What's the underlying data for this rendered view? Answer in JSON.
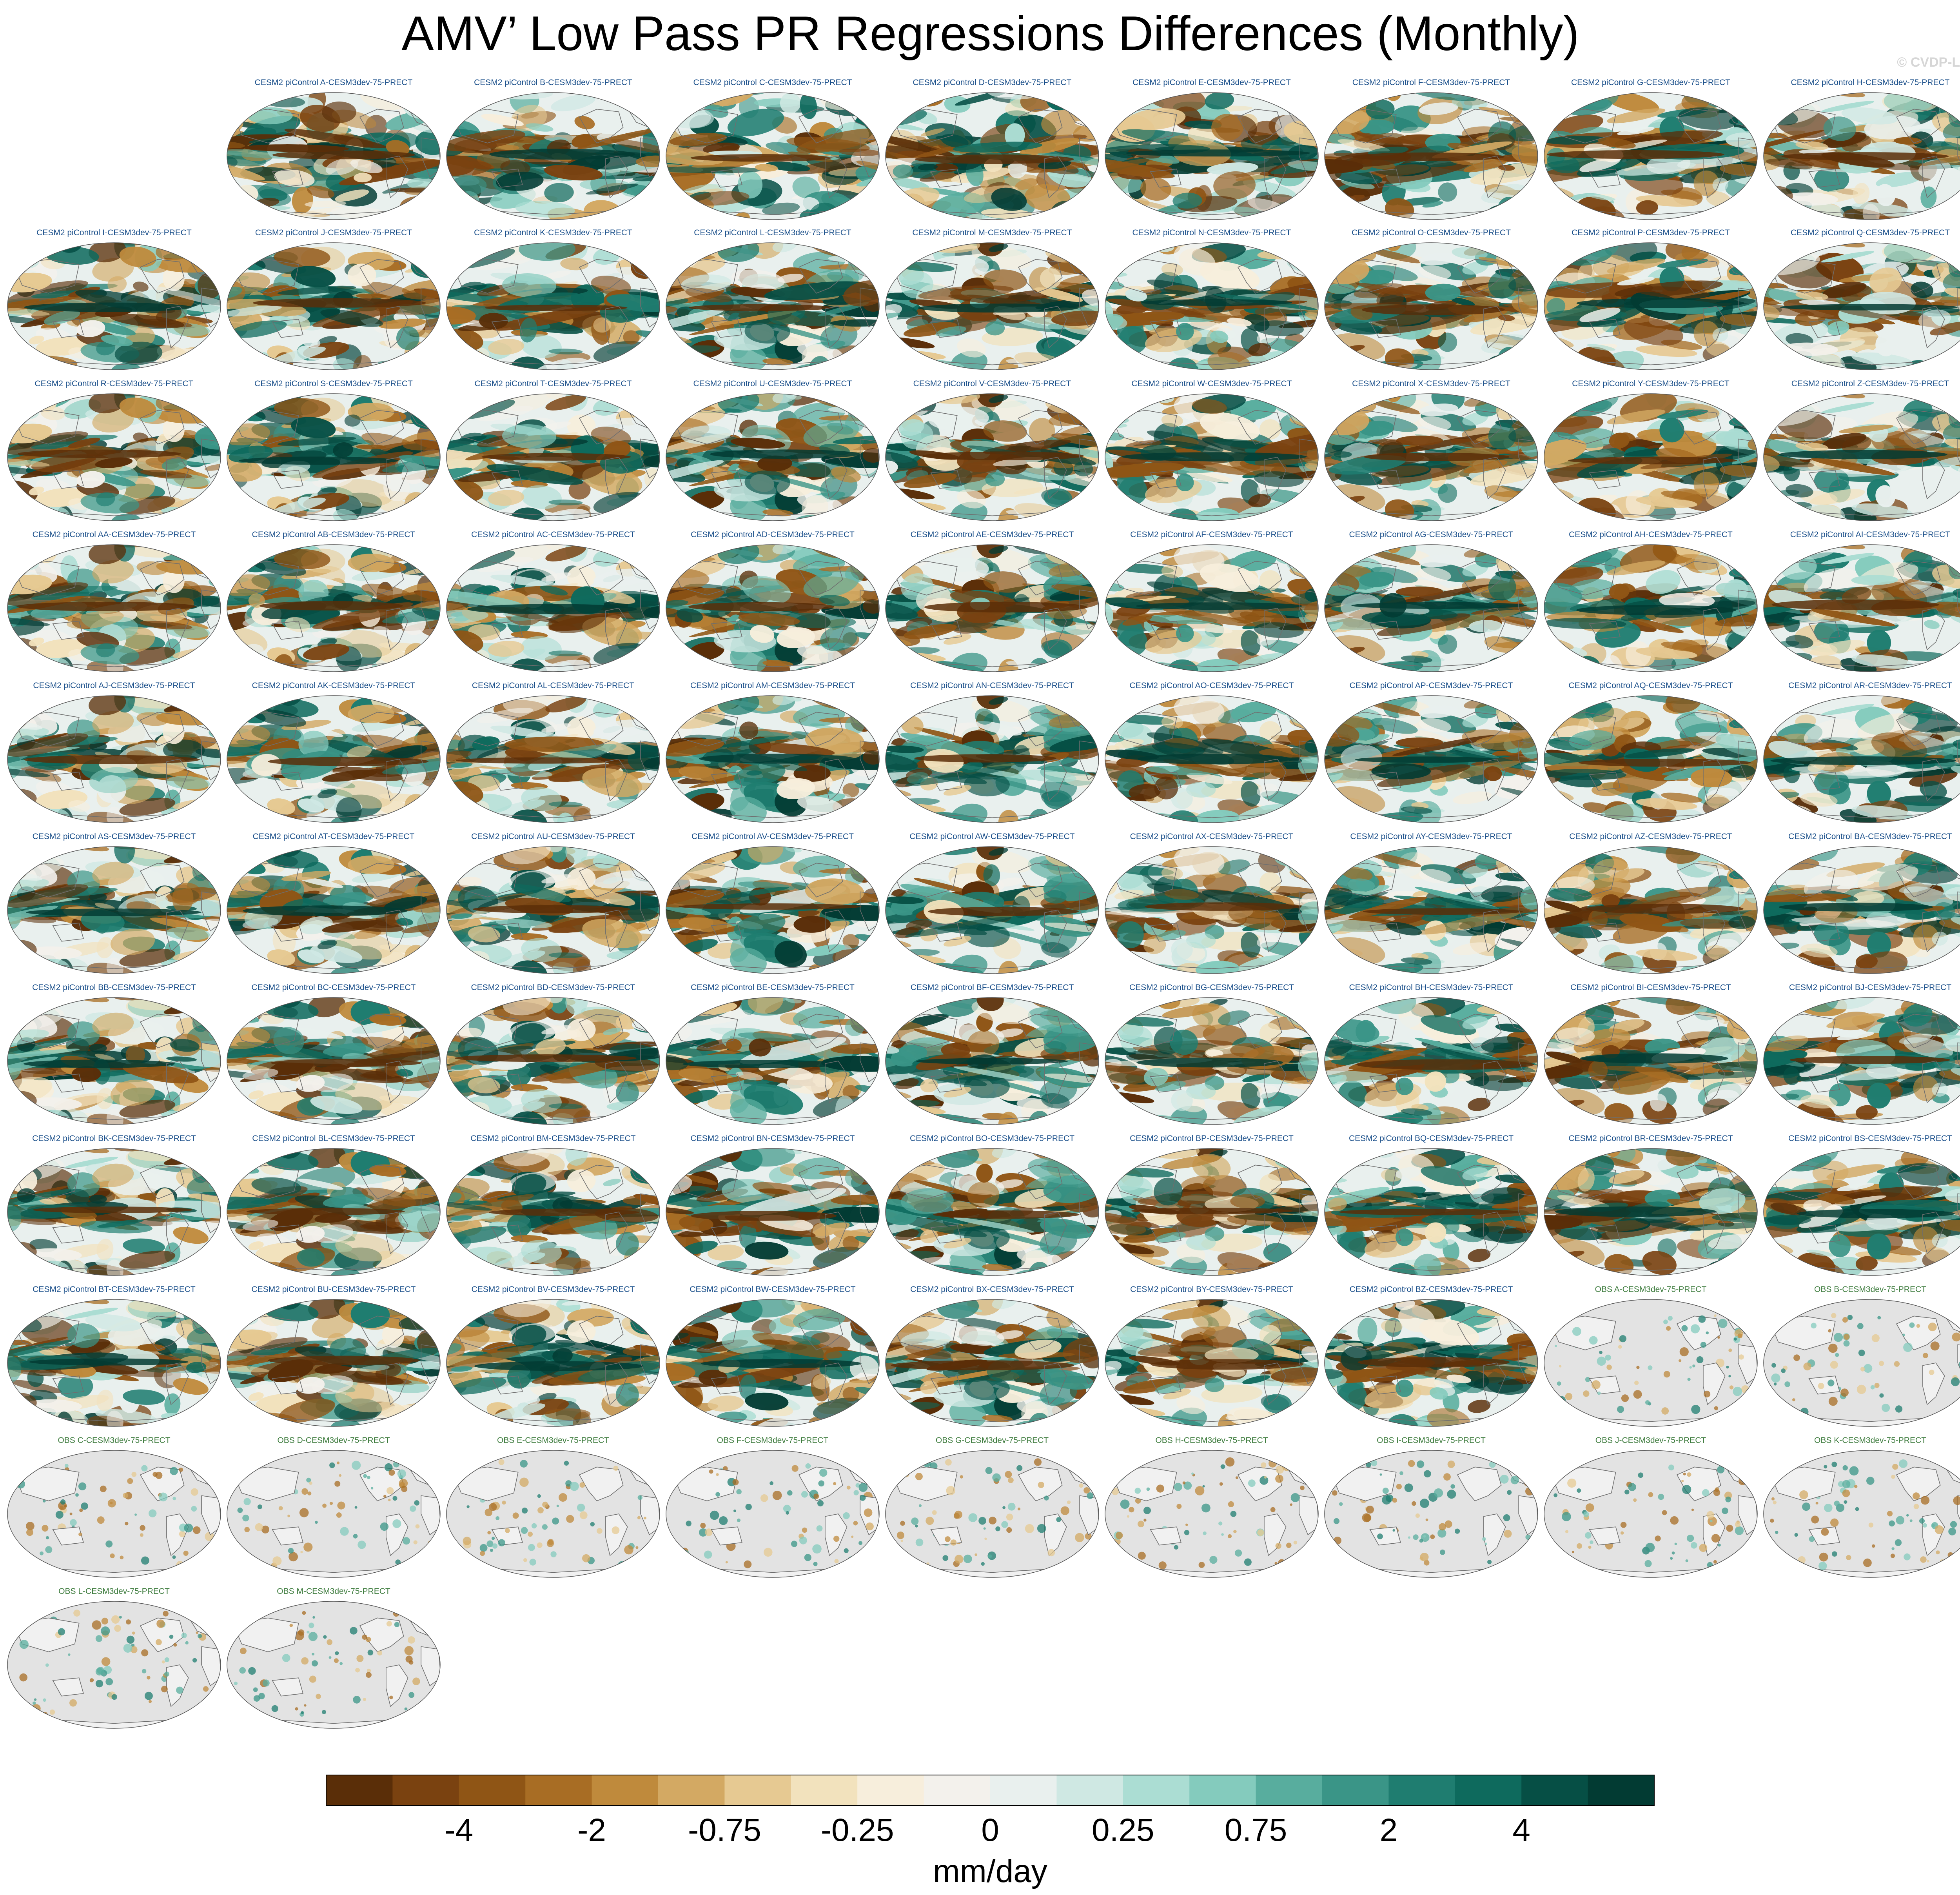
{
  "title": "AMV’ Low Pass PR Regressions Differences (Monthly)",
  "credit": "© CVDP-LE",
  "chart_data": {
    "type": "heatmap",
    "map_projection": "Robinson (global)",
    "variable": "PR regression difference",
    "units": "mm/day",
    "colorbar": {
      "label": "mm/day",
      "tick_labels": [
        "-4",
        "-2",
        "-0.75",
        "-0.25",
        "0",
        "0.25",
        "0.75",
        "2",
        "4"
      ],
      "bins": 20,
      "colors": [
        "#5a2e08",
        "#7a4210",
        "#8f5515",
        "#a86d24",
        "#bf8a3c",
        "#d3a963",
        "#e6c992",
        "#f2e2bd",
        "#f7eedc",
        "#f3f1ec",
        "#e9f0ee",
        "#cfe8e3",
        "#abddd3",
        "#84cbbd",
        "#58ad9e",
        "#3a9587",
        "#1f7d70",
        "#0e6a5d",
        "#064f45",
        "#023b33"
      ]
    },
    "panel_suffix": "-CESM3dev-75-PRECT",
    "ensemble_prefix": "CESM2 piControl ",
    "ensemble_members": [
      "A",
      "B",
      "C",
      "D",
      "E",
      "F",
      "G",
      "H",
      "I",
      "J",
      "K",
      "L",
      "M",
      "N",
      "O",
      "P",
      "Q",
      "R",
      "S",
      "T",
      "U",
      "V",
      "W",
      "X",
      "Y",
      "Z",
      "AA",
      "AB",
      "AC",
      "AD",
      "AE",
      "AF",
      "AG",
      "AH",
      "AI",
      "AJ",
      "AK",
      "AL",
      "AM",
      "AN",
      "AO",
      "AP",
      "AQ",
      "AR",
      "AS",
      "AT",
      "AU",
      "AV",
      "AW",
      "AX",
      "AY",
      "AZ",
      "BA",
      "BB",
      "BC",
      "BD",
      "BE",
      "BF",
      "BG",
      "BH",
      "BI",
      "BJ",
      "BK",
      "BL",
      "BM",
      "BN",
      "BO",
      "BP",
      "BQ",
      "BR",
      "BS",
      "BT",
      "BU",
      "BV",
      "BW",
      "BX",
      "BY",
      "BZ"
    ],
    "obs_prefix": "OBS ",
    "obs_members": [
      "A",
      "B",
      "C",
      "D",
      "E",
      "F",
      "G",
      "H",
      "I",
      "J",
      "K",
      "L",
      "M"
    ],
    "obs_land_only": true
  }
}
